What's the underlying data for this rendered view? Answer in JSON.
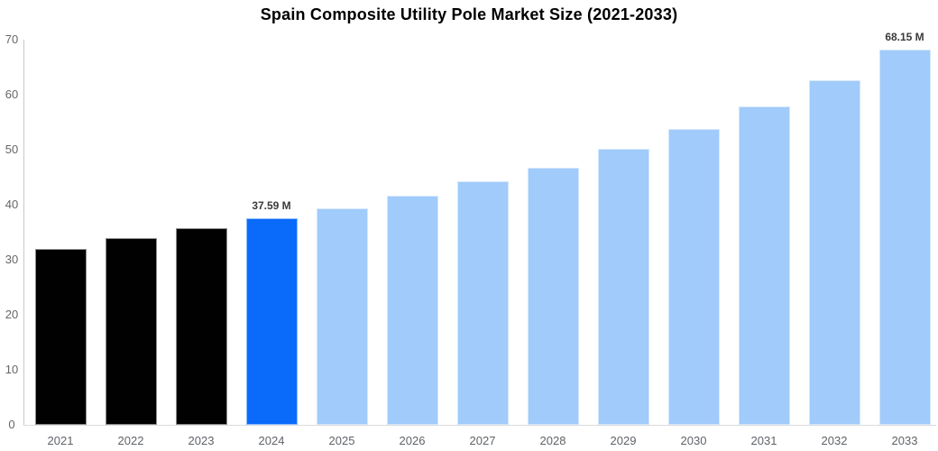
{
  "title": "Spain Composite Utility Pole Market Size (2021-2033)",
  "chart_data": {
    "type": "bar",
    "title": "Spain Composite Utility Pole Market Size (2021-2033)",
    "xlabel": "",
    "ylabel": "",
    "unit": "M",
    "ylim": [
      0,
      70
    ],
    "yticks": [
      0,
      10,
      20,
      30,
      40,
      50,
      60,
      70
    ],
    "grid": false,
    "legend": false,
    "categories": [
      "2021",
      "2022",
      "2023",
      "2024",
      "2025",
      "2026",
      "2027",
      "2028",
      "2029",
      "2030",
      "2031",
      "2032",
      "2033"
    ],
    "values": [
      31.9,
      33.9,
      35.8,
      37.59,
      39.4,
      41.6,
      44.3,
      46.8,
      50.1,
      53.8,
      57.9,
      62.7,
      68.15
    ],
    "bar_roles": [
      "historical",
      "historical",
      "historical",
      "highlight",
      "forecast",
      "forecast",
      "forecast",
      "forecast",
      "forecast",
      "forecast",
      "forecast",
      "forecast",
      "forecast"
    ],
    "data_labels": [
      {
        "category": "2024",
        "text": "37.59 M"
      },
      {
        "category": "2033",
        "text": "68.15 M"
      }
    ]
  },
  "colors": {
    "historical": "#010101",
    "highlight": "#0a6bfb",
    "forecast": "#a0cbfa",
    "axis_line": "#c9c9c9",
    "baseline": "#dcdcdc",
    "tick_text": "#666666",
    "value_label_text": "#3a3a3a",
    "title_text": "#000000",
    "background": "#ffffff"
  }
}
